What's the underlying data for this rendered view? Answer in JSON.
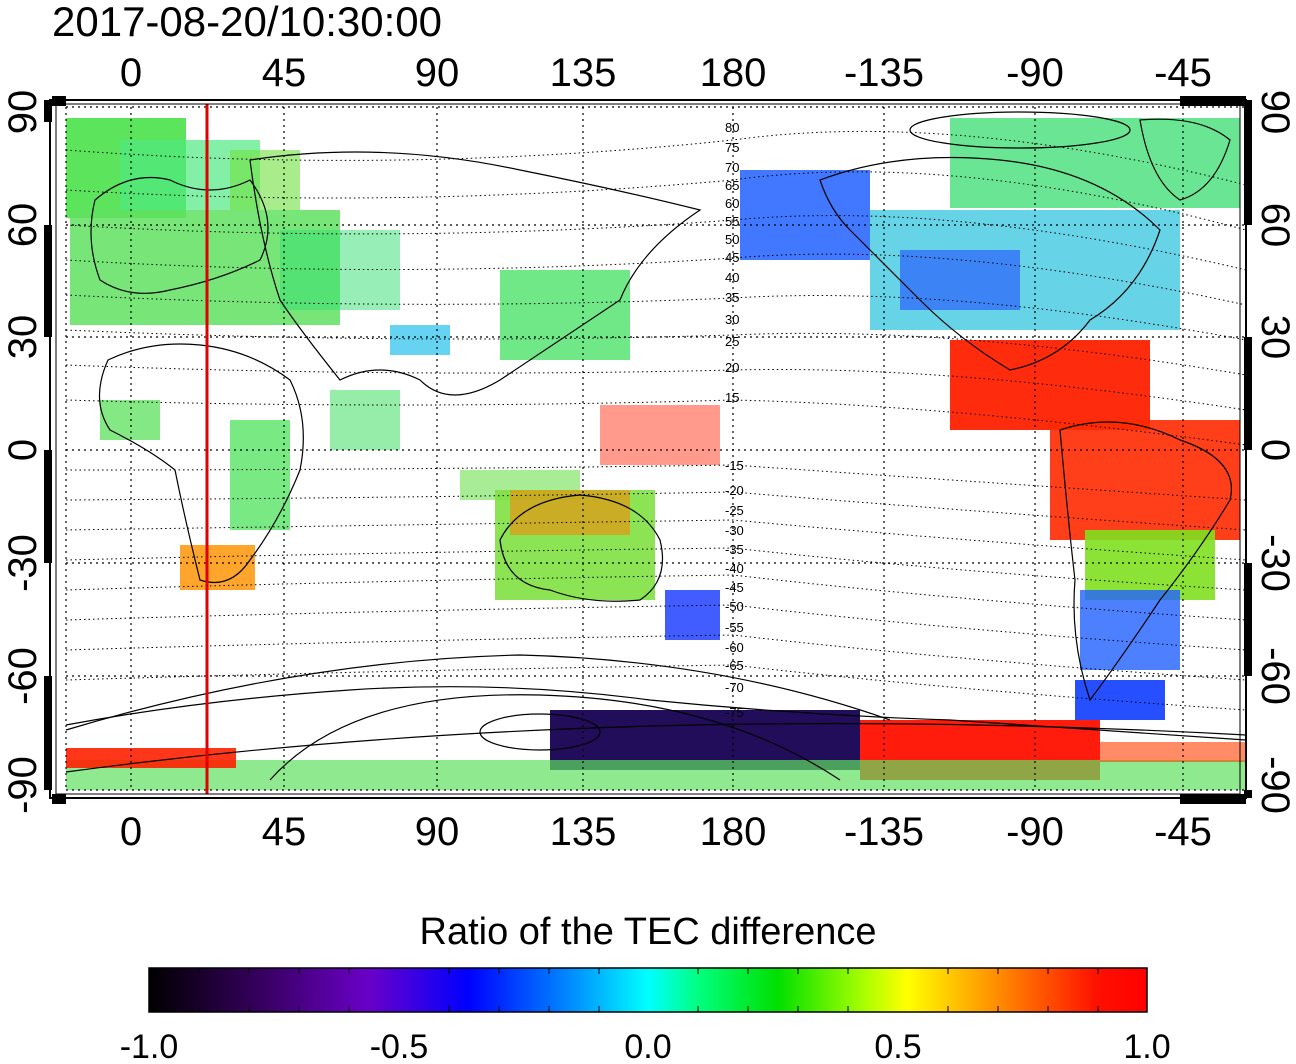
{
  "timestamp": "2017-08-20/10:30:00",
  "axes": {
    "lon_ticks": [
      "0",
      "45",
      "90",
      "135",
      "180",
      "-135",
      "-90",
      "-45"
    ],
    "lat_ticks_left": [
      "90",
      "60",
      "30",
      "0",
      "-30",
      "-60",
      "-90"
    ],
    "lat_ticks_right": [
      "90",
      "60",
      "30",
      "0",
      "-30",
      "-60",
      "-90"
    ]
  },
  "contour_labels": [
    "80",
    "75",
    "70",
    "65",
    "60",
    "55",
    "50",
    "45",
    "40",
    "35",
    "30",
    "25",
    "20",
    "15",
    "-15",
    "-20",
    "-25",
    "-30",
    "-35",
    "-40",
    "-45",
    "-50",
    "-55",
    "-60",
    "-65",
    "-70",
    "-75"
  ],
  "colorbar": {
    "title": "Ratio of the TEC difference",
    "tick_labels": [
      "-1.0",
      "-0.5",
      "0.0",
      "0.5",
      "1.0"
    ],
    "stops": [
      "#000000",
      "#3a0066",
      "#7a00d0",
      "#0000ff",
      "#0080ff",
      "#00ffff",
      "#00ff60",
      "#00e000",
      "#b0ff00",
      "#ffff00",
      "#ff8000",
      "#ff0000"
    ]
  },
  "colors": {
    "frame": "#000000",
    "marker_line": "#e00000",
    "grid": "#000000"
  },
  "marker_longitude": 22
}
